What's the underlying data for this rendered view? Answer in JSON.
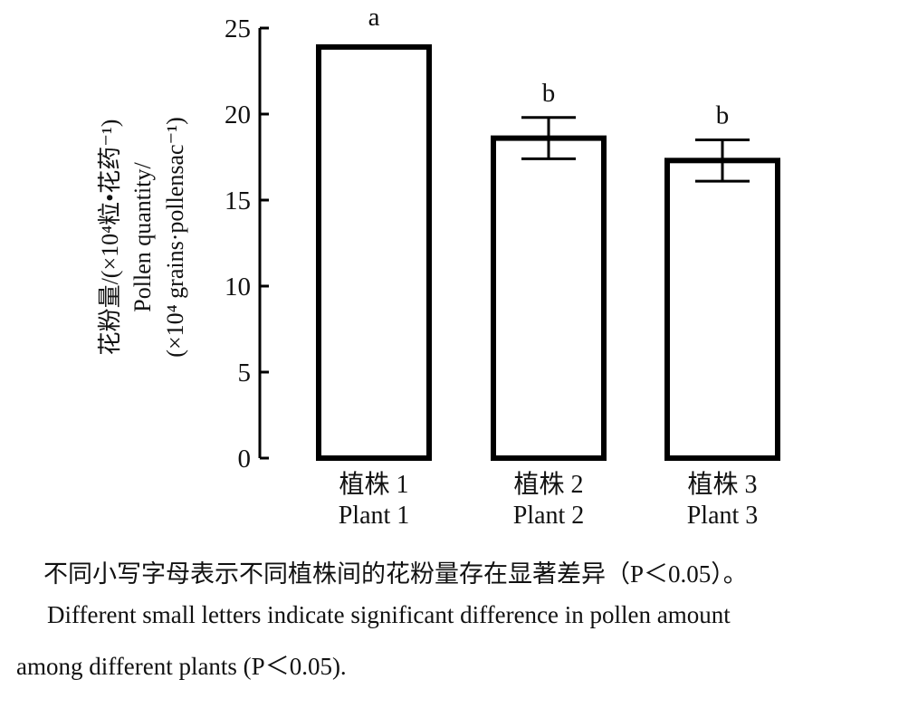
{
  "chart_data": {
    "type": "bar",
    "categories": [
      {
        "zh": "植株 1",
        "en": "Plant 1"
      },
      {
        "zh": "植株 2",
        "en": "Plant 2"
      },
      {
        "zh": "植株 3",
        "en": "Plant 3"
      }
    ],
    "values": [
      23.9,
      18.6,
      17.3
    ],
    "errors": [
      0,
      1.2,
      1.2
    ],
    "significance_letters": [
      "a",
      "b",
      "b"
    ],
    "ylabel_lines": [
      "花粉量/(×10⁴粒•花药⁻¹)",
      "Pollen quantity/",
      "(×10⁴ grains·pollensac⁻¹)"
    ],
    "ylim": [
      0,
      25
    ],
    "yticks": [
      "0",
      "5",
      "10",
      "15",
      "20",
      "25"
    ],
    "grid": false,
    "bar_fill": "#ffffff",
    "bar_stroke": "#000000"
  },
  "caption": {
    "zh": "不同小写字母表示不同植株间的花粉量存在显著差异（P＜0.05）。",
    "en_line1": "Different small letters indicate significant difference in pollen amount",
    "en_line2": "among different plants (P＜0.05)."
  }
}
